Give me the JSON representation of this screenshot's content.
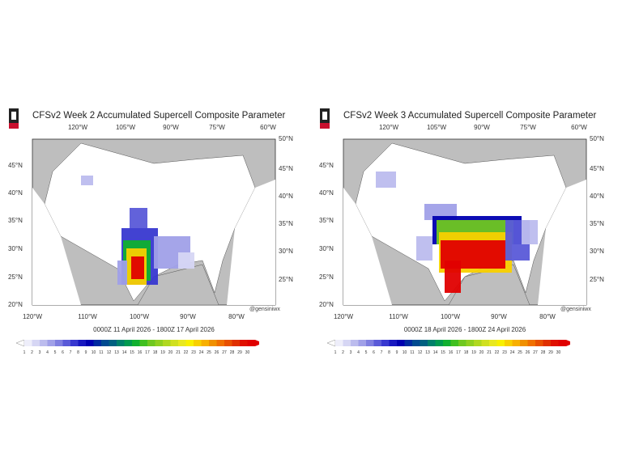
{
  "panels": [
    {
      "title": "CFSv2 Week 2 Accumulated Supercell Composite Parameter",
      "date_range": "0000Z 11  April  2026  - 1800Z 17  April  2026",
      "credit": "@gensiniwx",
      "logo_text": "NIU",
      "top_lon_labels": [
        "120°W",
        "105°W",
        "90°W",
        "75°W",
        "60°W"
      ],
      "bottom_lon_labels": [
        "120°W",
        "110°W",
        "100°W",
        "90°W",
        "80°W"
      ],
      "left_lat_labels": [
        "45°N",
        "40°N",
        "35°N",
        "30°N",
        "25°N",
        "20°N"
      ],
      "right_lat_labels": [
        "50°N",
        "45°N",
        "40°N",
        "35°N",
        "30°N",
        "25°N"
      ]
    },
    {
      "title": "CFSv2 Week 3 Accumulated Supercell Composite Parameter",
      "date_range": "0000Z 18  April  2026  - 1800Z 24  April  2026",
      "credit": "@gensiniwx",
      "logo_text": "NIU",
      "top_lon_labels": [
        "120°W",
        "105°W",
        "90°W",
        "75°W",
        "60°W"
      ],
      "bottom_lon_labels": [
        "120°W",
        "110°W",
        "100°W",
        "90°W",
        "80°W"
      ],
      "left_lat_labels": [
        "45°N",
        "40°N",
        "35°N",
        "30°N",
        "25°N",
        "20°N"
      ],
      "right_lat_labels": [
        "50°N",
        "45°N",
        "40°N",
        "35°N",
        "30°N",
        "25°N"
      ]
    }
  ],
  "colorbar": {
    "labels": [
      "1",
      "2",
      "3",
      "4",
      "5",
      "6",
      "7",
      "8",
      "9",
      "10",
      "11",
      "12",
      "13",
      "14",
      "15",
      "16",
      "17",
      "18",
      "19",
      "20",
      "21",
      "22",
      "23",
      "24",
      "25",
      "26",
      "27",
      "28",
      "29",
      "30"
    ],
    "colors": [
      "#eeeefa",
      "#d6d6f4",
      "#bcbcee",
      "#a0a0e8",
      "#7f7fe0",
      "#5a5ad8",
      "#3838d0",
      "#1818c0",
      "#0000b0",
      "#002aa0",
      "#004a90",
      "#006080",
      "#00806a",
      "#009a50",
      "#10b030",
      "#40c020",
      "#70c820",
      "#90d020",
      "#b0d820",
      "#d0e020",
      "#e8e820",
      "#f8f000",
      "#f8d000",
      "#f8b000",
      "#f09000",
      "#f07000",
      "#e85000",
      "#e03000",
      "#e01000",
      "#e00000"
    ],
    "land_color": "#bebebe",
    "ocean_color": "#ffffff",
    "us_color": "#ffffff"
  }
}
